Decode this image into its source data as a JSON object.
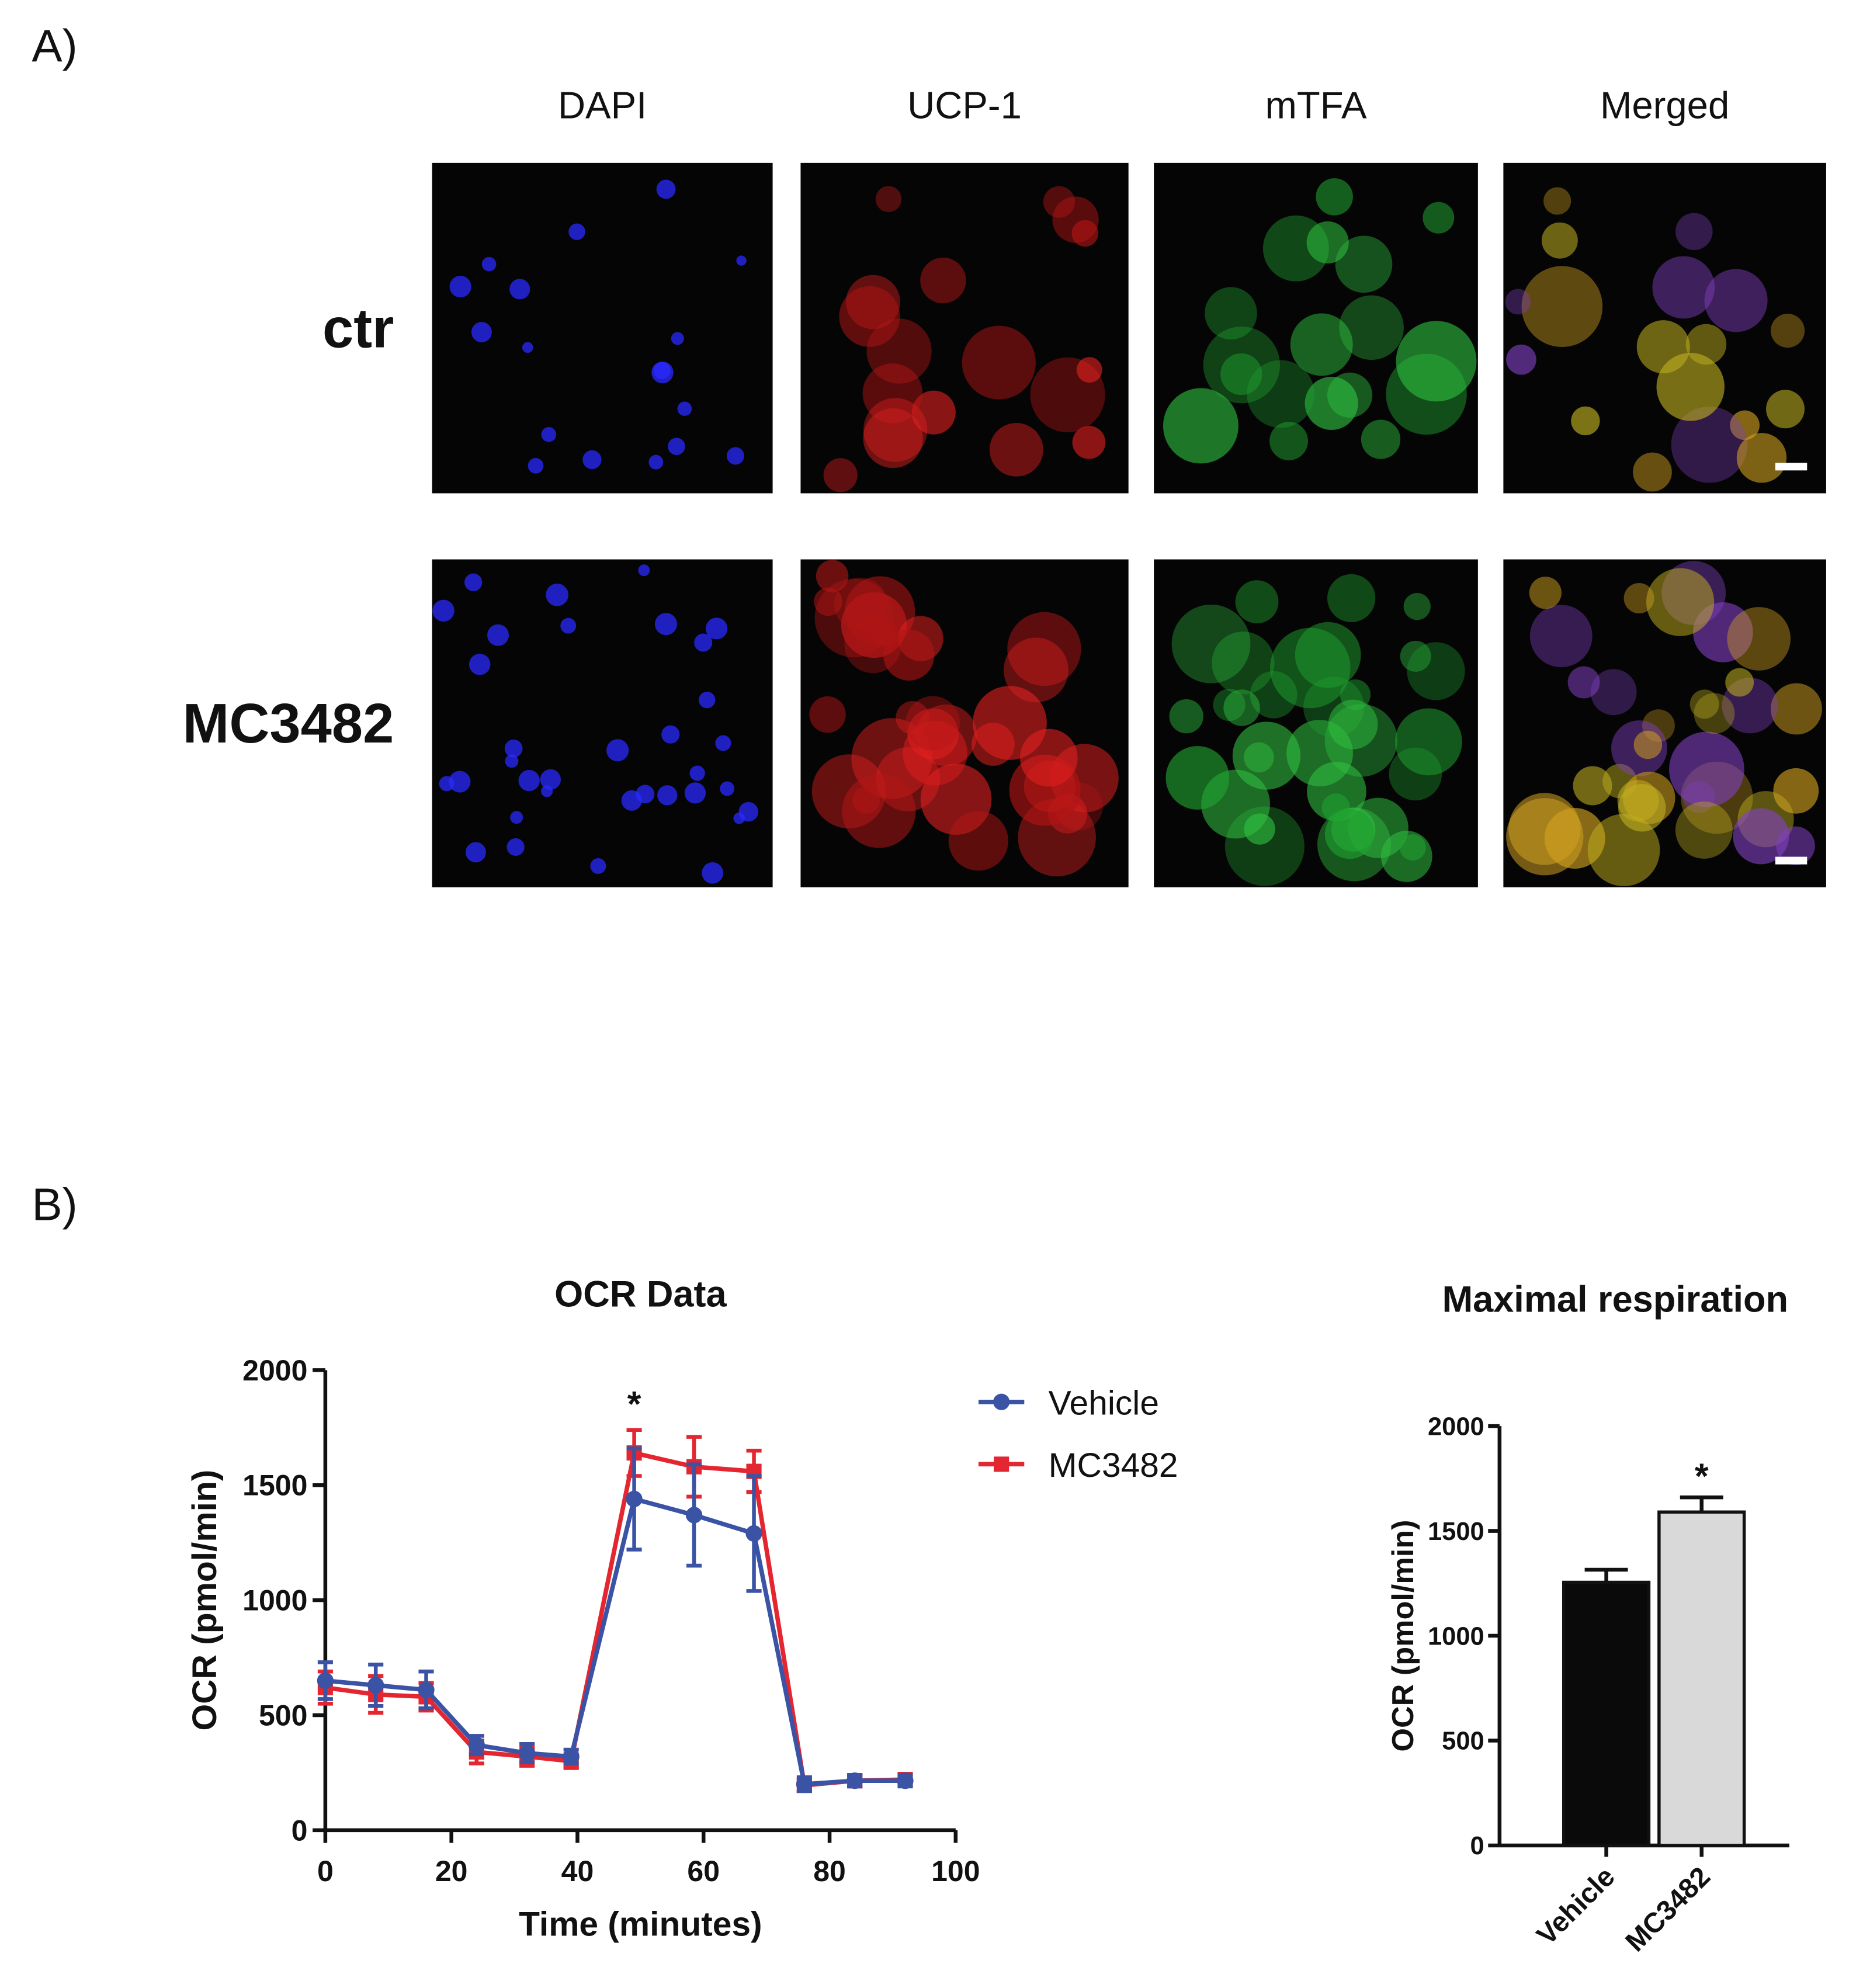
{
  "panel_a": {
    "label": "A)",
    "columns": [
      "DAPI",
      "UCP-1",
      "mTFA",
      "Merged"
    ],
    "rows": [
      "ctr",
      "MC3482"
    ]
  },
  "panel_b": {
    "label": "B)"
  },
  "chart_data": [
    {
      "type": "line",
      "title": "OCR Data",
      "x_label": "Time (minutes)",
      "y_label": "OCR (pmol/min)",
      "x": [
        0,
        8,
        16,
        24,
        32,
        39,
        49,
        58.5,
        68,
        76,
        84,
        92
      ],
      "series": [
        {
          "name": "Vehicle",
          "color": "#3a53a4",
          "marker": "circle",
          "values": [
            650,
            630,
            610,
            370,
            335,
            320,
            1440,
            1370,
            1290,
            200,
            215,
            215
          ],
          "errors": [
            80,
            90,
            80,
            40,
            40,
            30,
            220,
            220,
            250,
            30,
            25,
            25
          ]
        },
        {
          "name": "MC3482",
          "color": "#e3262f",
          "marker": "square",
          "values": [
            620,
            590,
            580,
            340,
            320,
            300,
            1640,
            1580,
            1560,
            195,
            215,
            220
          ],
          "errors": [
            70,
            80,
            60,
            50,
            40,
            30,
            100,
            130,
            90,
            25,
            25,
            25
          ]
        }
      ],
      "annotations": [
        {
          "text": "*",
          "x": 49,
          "y": 1900
        }
      ],
      "xlim": [
        0,
        100
      ],
      "xticks": [
        0,
        20,
        40,
        60,
        80,
        100
      ],
      "ylim": [
        0,
        2000
      ],
      "yticks": [
        0,
        500,
        1000,
        1500,
        2000
      ],
      "legend": "right"
    },
    {
      "type": "bar",
      "title": "Maximal respiration",
      "y_label": "OCR (pmol/min)",
      "categories": [
        "Vehicle",
        "MC3482"
      ],
      "values": [
        1255,
        1590
      ],
      "errors": [
        60,
        70
      ],
      "colors": [
        "#0a0a0a",
        "#d9d9d9"
      ],
      "annotations": [
        {
          "text": "*",
          "category": 1,
          "y": 1800
        }
      ],
      "ylim": [
        0,
        2000
      ],
      "yticks": [
        0,
        500,
        1000,
        1500,
        2000
      ]
    }
  ]
}
